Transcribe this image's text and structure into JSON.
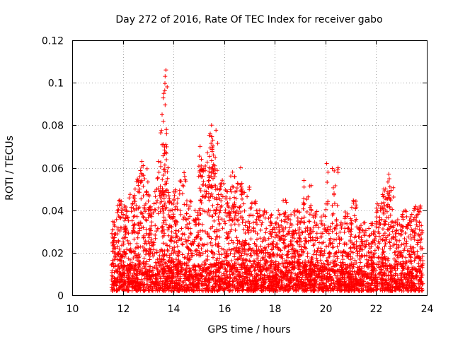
{
  "chart_data": {
    "type": "scatter",
    "title": "Day 272 of 2016, Rate Of TEC Index for receiver gabo",
    "xlabel": "GPS time / hours",
    "ylabel": "ROTI / TECUs",
    "xlim": [
      10,
      24
    ],
    "ylim": [
      0,
      0.12
    ],
    "xticks": [
      10,
      12,
      14,
      16,
      18,
      20,
      22,
      24
    ],
    "yticks": [
      0,
      0.02,
      0.04,
      0.06,
      0.08,
      0.1,
      0.12
    ],
    "xtick_labels": [
      "10",
      "12",
      "14",
      "16",
      "18",
      "20",
      "22",
      "24"
    ],
    "ytick_labels": [
      "0",
      "0.02",
      "0.04",
      "0.06",
      "0.08",
      "0.1",
      "0.12"
    ],
    "grid": true,
    "marker": "+",
    "series_color": "#ff0000",
    "series": [
      {
        "name": "ROTI",
        "x_range": [
          11.55,
          23.85
        ],
        "band_step_hours": 0.25,
        "band_start": 11.5,
        "band_max": [
          0.035,
          0.045,
          0.048,
          0.05,
          0.056,
          0.062,
          0.048,
          0.052,
          0.06,
          0.045,
          0.05,
          0.058,
          0.045,
          0.04,
          0.062,
          0.068,
          0.078,
          0.055,
          0.05,
          0.058,
          0.055,
          0.052,
          0.045,
          0.04,
          0.042,
          0.038,
          0.04,
          0.045,
          0.038,
          0.04,
          0.038,
          0.052,
          0.04,
          0.038,
          0.035,
          0.062,
          0.036,
          0.04,
          0.045,
          0.034,
          0.038,
          0.036,
          0.045,
          0.05,
          0.056,
          0.038,
          0.04,
          0.04,
          0.042,
          0.035
        ],
        "band_min": 0.002,
        "peaks": [
          {
            "x": 12.75,
            "y": 0.063
          },
          {
            "x": 13.55,
            "y": 0.085
          },
          {
            "x": 13.62,
            "y": 0.095
          },
          {
            "x": 13.67,
            "y": 0.103
          },
          {
            "x": 13.7,
            "y": 0.106
          },
          {
            "x": 13.6,
            "y": 0.071
          },
          {
            "x": 13.72,
            "y": 0.078
          },
          {
            "x": 13.4,
            "y": 0.063
          },
          {
            "x": 13.78,
            "y": 0.06
          },
          {
            "x": 15.05,
            "y": 0.07
          },
          {
            "x": 15.1,
            "y": 0.064
          },
          {
            "x": 15.45,
            "y": 0.076
          },
          {
            "x": 15.5,
            "y": 0.08
          },
          {
            "x": 15.55,
            "y": 0.073
          },
          {
            "x": 16.65,
            "y": 0.06
          },
          {
            "x": 19.15,
            "y": 0.054
          },
          {
            "x": 20.05,
            "y": 0.062
          },
          {
            "x": 22.5,
            "y": 0.057
          },
          {
            "x": 22.3,
            "y": 0.05
          }
        ]
      }
    ]
  }
}
